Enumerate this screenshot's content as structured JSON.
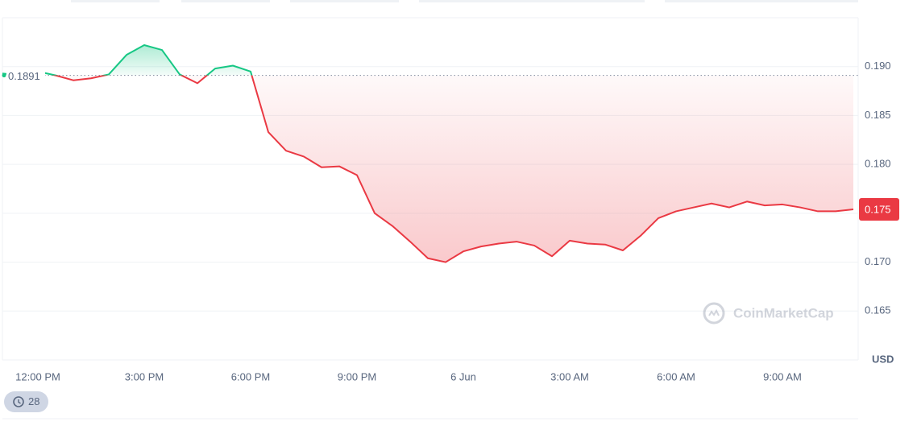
{
  "chart_data": {
    "type": "line",
    "categories": [
      null,
      null,
      "12:00 PM",
      null,
      null,
      null,
      null,
      null,
      "3:00 PM",
      null,
      null,
      null,
      null,
      null,
      "6:00 PM",
      null,
      null,
      null,
      null,
      null,
      "9:00 PM",
      null,
      null,
      null,
      null,
      null,
      "6 Jun",
      null,
      null,
      null,
      null,
      null,
      "3:00 AM",
      null,
      null,
      null,
      null,
      null,
      "6:00 AM",
      null,
      null,
      null,
      null,
      null,
      "9:00 AM",
      null,
      null,
      null,
      null
    ],
    "values": [
      0.1893,
      0.1891,
      0.1895,
      0.1891,
      0.1886,
      0.1888,
      0.1892,
      0.1912,
      0.1922,
      0.1917,
      0.1892,
      0.1883,
      0.1898,
      0.1901,
      0.1895,
      0.1833,
      0.1814,
      0.1808,
      0.1797,
      0.1798,
      0.1789,
      0.175,
      0.1737,
      0.1721,
      0.1704,
      0.17,
      0.1711,
      0.1716,
      0.1719,
      0.1721,
      0.1717,
      0.1706,
      0.1722,
      0.1719,
      0.1718,
      0.1712,
      0.1727,
      0.1745,
      0.1752,
      0.1756,
      0.176,
      0.1756,
      0.1762,
      0.1758,
      0.1759,
      0.1756,
      0.1752,
      0.1752,
      0.1754
    ],
    "colors": {
      "up": "#16c784",
      "down": "#ea3943"
    },
    "reference_value": 0.1891,
    "current_price": {
      "value": 0.1754,
      "label": "0.175"
    },
    "ylim": [
      0.16,
      0.195
    ],
    "yticks": [
      {
        "value": 0.19,
        "label": "0.190"
      },
      0.185,
      {
        "value": 0.18,
        "label": "0.180"
      },
      0.175,
      {
        "value": 0.17,
        "label": "0.170"
      },
      0.165
    ],
    "currency": "USD",
    "watermark": "CoinMarketCap",
    "history_count": "28",
    "grid": true
  }
}
